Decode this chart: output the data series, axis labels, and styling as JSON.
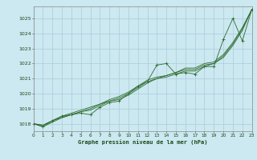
{
  "title": "Graphe pression niveau de la mer (hPa)",
  "background_color": "#cce8f0",
  "grid_color": "#aaccdd",
  "line_color": "#2d6b2d",
  "xlim": [
    0,
    23
  ],
  "ylim": [
    1017.5,
    1025.8
  ],
  "xticks": [
    0,
    1,
    2,
    3,
    4,
    5,
    6,
    7,
    8,
    9,
    10,
    11,
    12,
    13,
    14,
    15,
    16,
    17,
    18,
    19,
    20,
    21,
    22,
    23
  ],
  "yticks": [
    1018,
    1019,
    1020,
    1021,
    1022,
    1023,
    1024,
    1025
  ],
  "series": [
    {
      "x": [
        0,
        1,
        2,
        3,
        4,
        5,
        6,
        7,
        8,
        9,
        10,
        11,
        12,
        13,
        14,
        15,
        16,
        17,
        18,
        19,
        20,
        21,
        22,
        23
      ],
      "y": [
        1018.0,
        1017.8,
        1018.2,
        1018.5,
        1018.6,
        1018.7,
        1018.6,
        1019.1,
        1019.4,
        1019.5,
        1020.0,
        1020.5,
        1020.8,
        1021.9,
        1022.0,
        1021.3,
        1021.4,
        1021.3,
        1021.8,
        1021.8,
        1023.6,
        1025.0,
        1023.5,
        1025.6
      ],
      "style": "line_marker"
    },
    {
      "x": [
        0,
        1,
        2,
        3,
        4,
        5,
        6,
        7,
        8,
        9,
        10,
        11,
        12,
        13,
        14,
        15,
        16,
        17,
        18,
        19,
        20,
        21,
        22,
        23
      ],
      "y": [
        1018.0,
        1017.8,
        1018.1,
        1018.4,
        1018.6,
        1018.8,
        1018.9,
        1019.2,
        1019.5,
        1019.6,
        1019.9,
        1020.3,
        1020.7,
        1021.0,
        1021.1,
        1021.3,
        1021.5,
        1021.5,
        1021.8,
        1022.0,
        1022.4,
        1023.2,
        1024.2,
        1025.6
      ],
      "style": "line_only"
    },
    {
      "x": [
        0,
        1,
        2,
        3,
        4,
        5,
        6,
        7,
        8,
        9,
        10,
        11,
        12,
        13,
        14,
        15,
        16,
        17,
        18,
        19,
        20,
        21,
        22,
        23
      ],
      "y": [
        1018.0,
        1017.9,
        1018.2,
        1018.4,
        1018.6,
        1018.8,
        1019.0,
        1019.3,
        1019.5,
        1019.7,
        1020.0,
        1020.4,
        1020.8,
        1021.0,
        1021.2,
        1021.4,
        1021.6,
        1021.6,
        1021.9,
        1022.0,
        1022.5,
        1023.3,
        1024.3,
        1025.6
      ],
      "style": "line_only"
    },
    {
      "x": [
        0,
        1,
        2,
        3,
        4,
        5,
        6,
        7,
        8,
        9,
        10,
        11,
        12,
        13,
        14,
        15,
        16,
        17,
        18,
        19,
        20,
        21,
        22,
        23
      ],
      "y": [
        1018.0,
        1017.9,
        1018.2,
        1018.5,
        1018.7,
        1018.9,
        1019.1,
        1019.3,
        1019.6,
        1019.8,
        1020.1,
        1020.5,
        1020.9,
        1021.1,
        1021.2,
        1021.4,
        1021.7,
        1021.7,
        1022.0,
        1022.1,
        1022.6,
        1023.4,
        1024.4,
        1025.6
      ],
      "style": "line_only"
    }
  ]
}
